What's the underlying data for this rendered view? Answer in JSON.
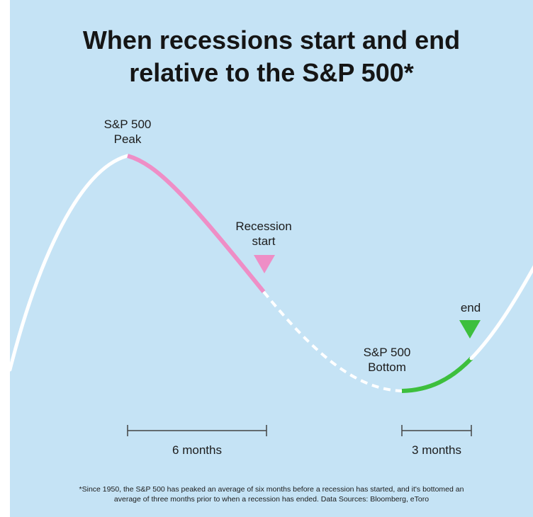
{
  "title": {
    "line1": "When recessions start and end",
    "line2": "relative to the S&P 500*"
  },
  "labels": {
    "peak_line1": "S&P 500",
    "peak_line2": "Peak",
    "recession_start_line1": "Recession",
    "recession_start_line2": "start",
    "end": "end",
    "bottom_line1": "S&P 500",
    "bottom_line2": "Bottom"
  },
  "durations": {
    "first": "6 months",
    "second": "3 months"
  },
  "footnote": {
    "line1": "*Since 1950, the S&P 500 has peaked an average of six months before a recession has started, and it's bottomed an",
    "line2": "average of three months prior to when a recession has ended. Data Sources: Bloomberg, eToro"
  },
  "colors": {
    "background": "#c5e3f5",
    "curve": "#ffffff",
    "pre_recession_segment": "#ee8ec6",
    "post_bottom_segment": "#3dbf3d",
    "recession_start_marker": "#ee8ec6",
    "end_marker": "#3dbf3d",
    "bracket": "#444444"
  }
}
